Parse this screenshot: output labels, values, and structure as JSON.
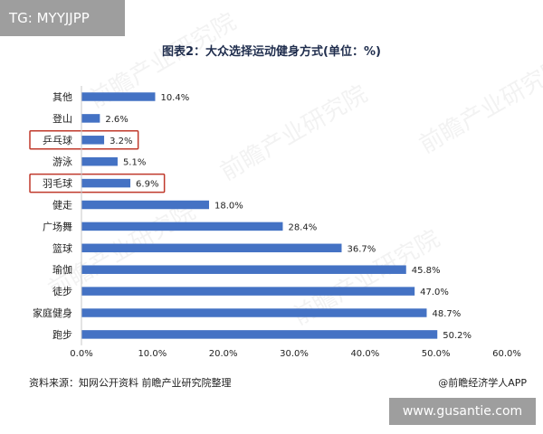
{
  "watermark_top": "TG: MYYJJPP",
  "watermark_bottom": "www.gusantie.com",
  "chart_data": {
    "type": "bar",
    "orientation": "horizontal",
    "title": "图表2：大众选择运动健身方式(单位：%)",
    "categories": [
      "其他",
      "登山",
      "乒乓球",
      "游泳",
      "羽毛球",
      "健走",
      "广场舞",
      "篮球",
      "瑜伽",
      "徒步",
      "家庭健身",
      "跑步"
    ],
    "values": [
      10.4,
      2.6,
      3.2,
      5.1,
      6.9,
      18.0,
      28.4,
      36.7,
      45.8,
      47.0,
      48.7,
      50.2
    ],
    "value_labels": [
      "10.4%",
      "2.6%",
      "3.2%",
      "5.1%",
      "6.9%",
      "18.0%",
      "28.4%",
      "36.7%",
      "45.8%",
      "47.0%",
      "48.7%",
      "50.2%"
    ],
    "x_ticks": [
      "0.0%",
      "10.0%",
      "20.0%",
      "30.0%",
      "40.0%",
      "50.0%",
      "60.0%"
    ],
    "xlim": [
      0,
      60
    ],
    "highlighted": [
      "乒乓球",
      "羽毛球"
    ],
    "bar_color": "#4472c4",
    "highlight_color": "#c0392b",
    "grid": false
  },
  "source": "资料来源：知网公开资料 前瞻产业研究院整理",
  "credit": "@前瞻经济学人APP"
}
